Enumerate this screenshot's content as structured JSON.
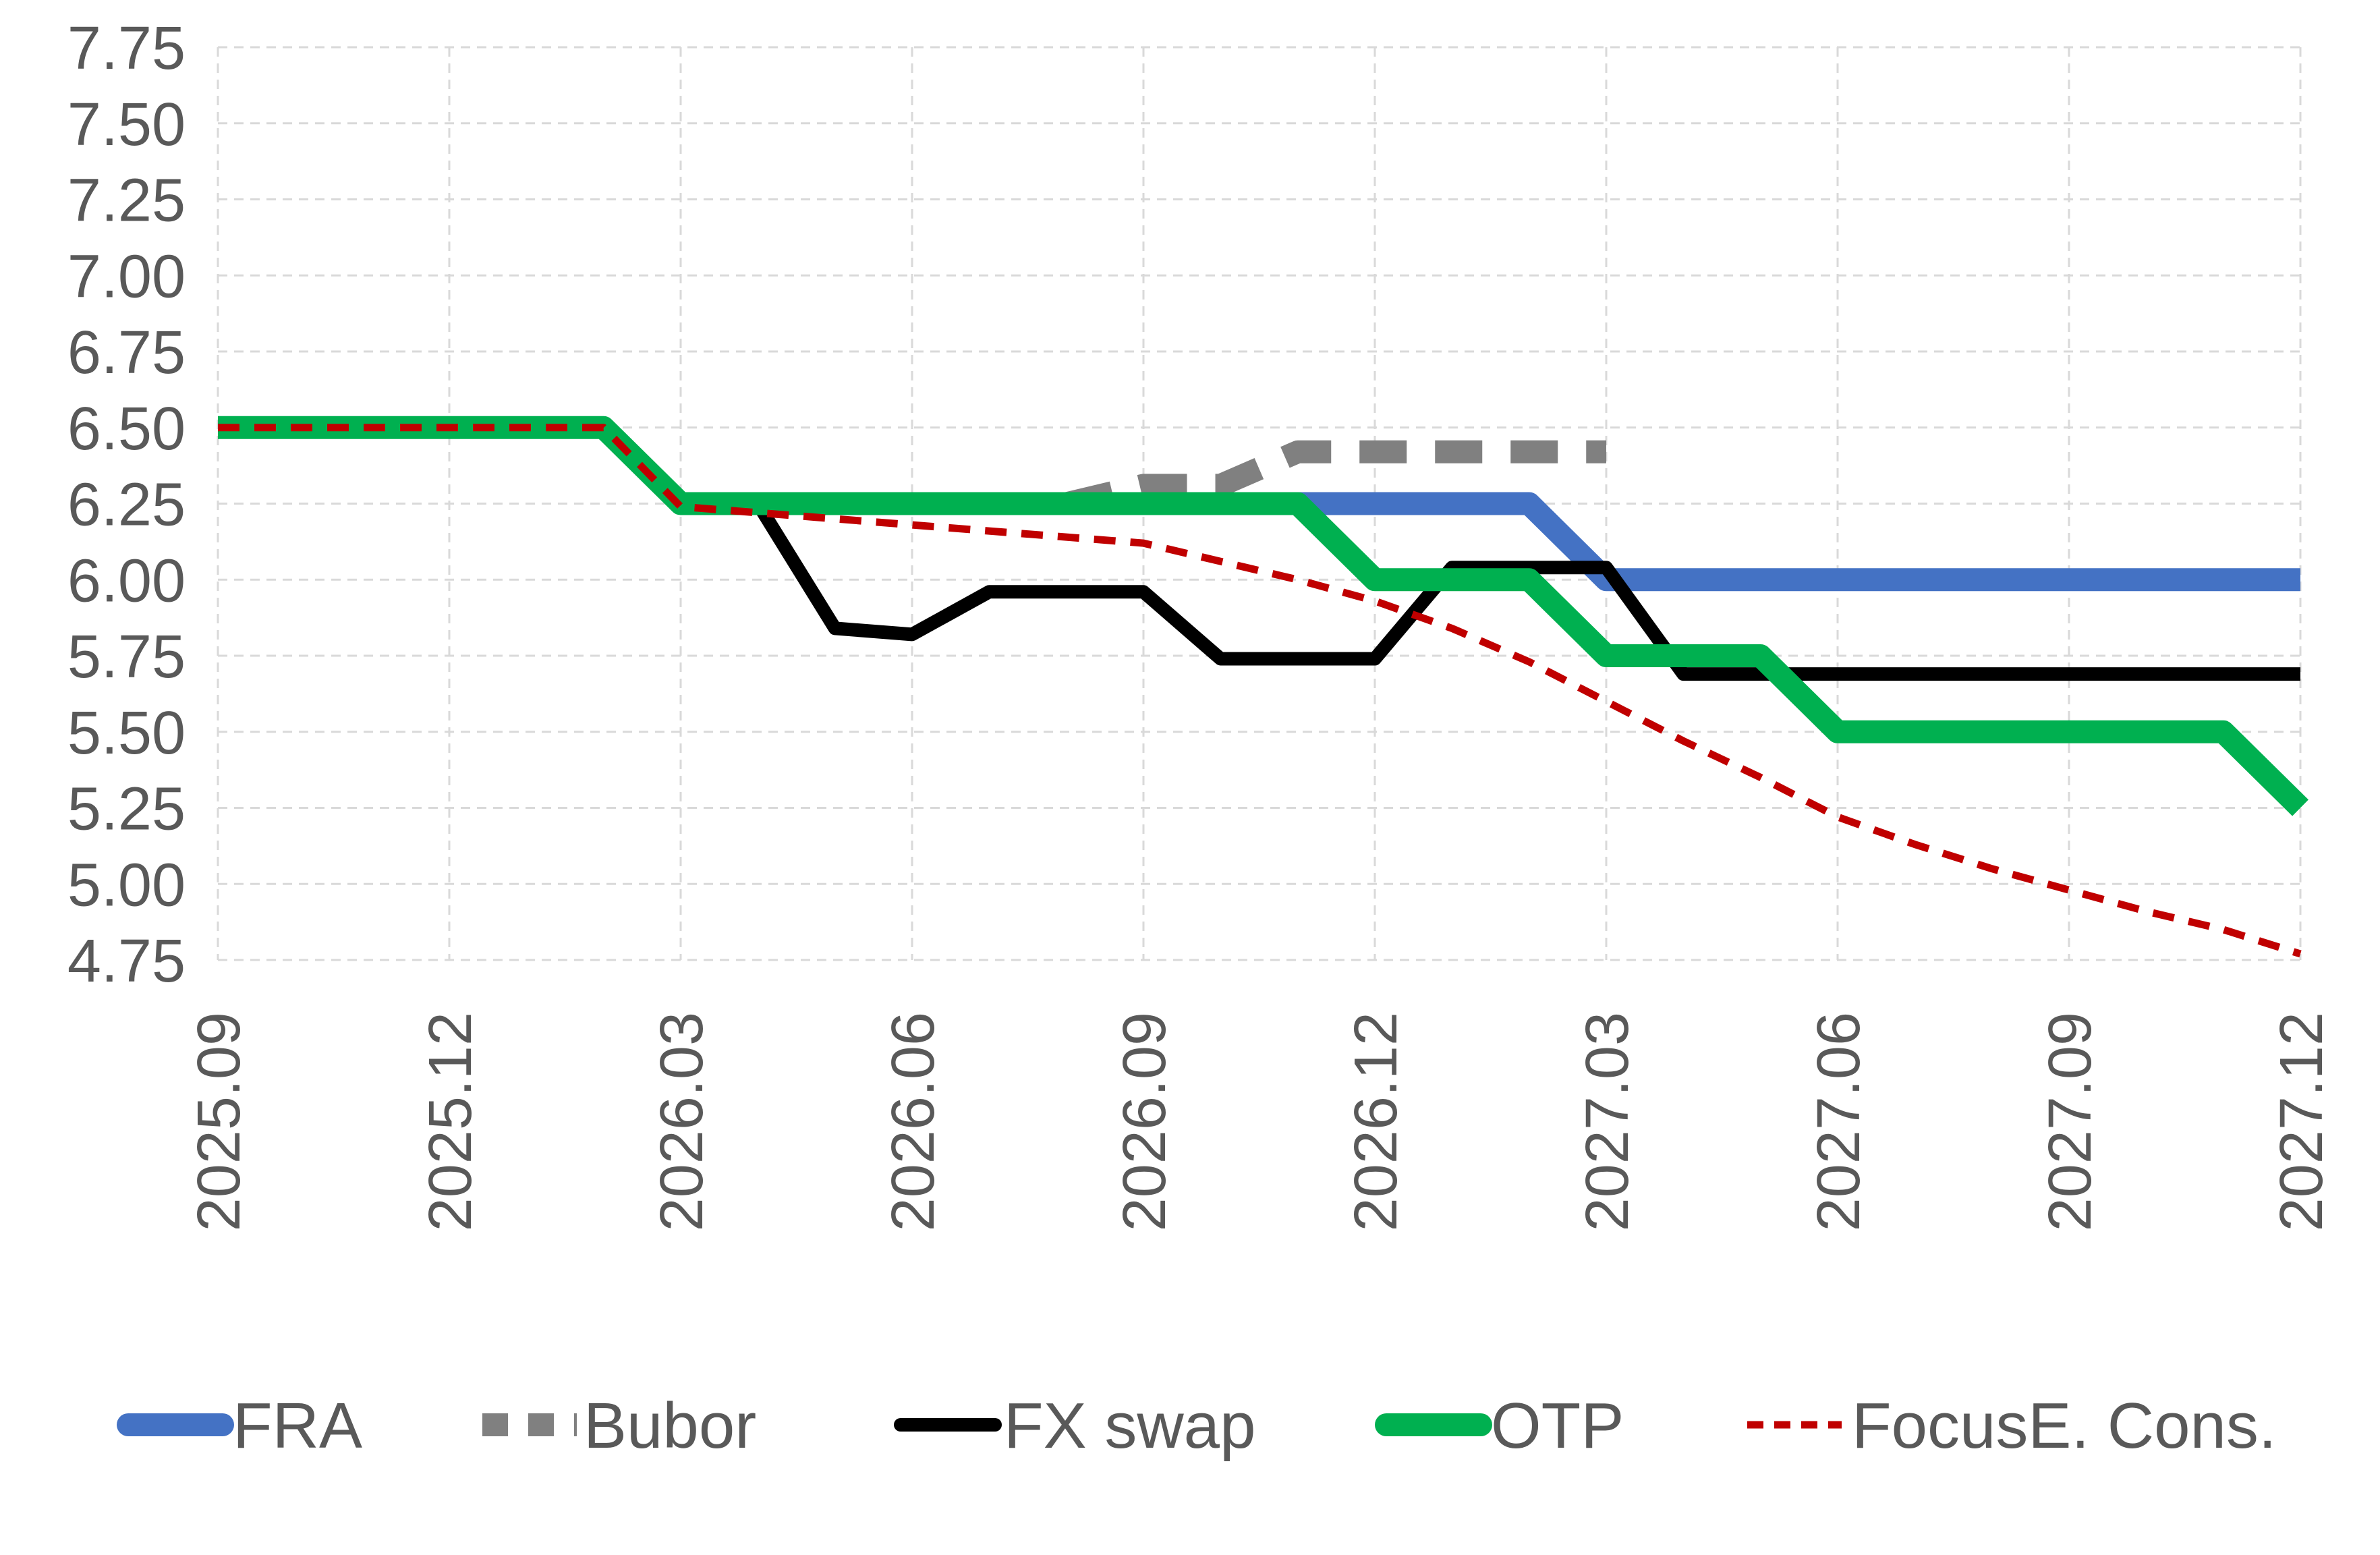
{
  "chart_data": {
    "type": "line",
    "title": "",
    "xlabel": "",
    "ylabel": "",
    "ylim": [
      4.75,
      7.75
    ],
    "y_ticks": [
      "7.75",
      "7.50",
      "7.25",
      "7.00",
      "6.75",
      "6.50",
      "6.25",
      "6.00",
      "5.75",
      "5.50",
      "5.25",
      "5.00",
      "4.75"
    ],
    "x_ticks": [
      "2025.09",
      "2025.12",
      "2026.03",
      "2026.06",
      "2026.09",
      "2026.12",
      "2027.03",
      "2027.06",
      "2027.09",
      "2027.12"
    ],
    "x_label_every": 3,
    "grid": true,
    "legend_position": "bottom",
    "x": [
      "2025.09",
      "2025.10",
      "2025.11",
      "2025.12",
      "2026.01",
      "2026.02",
      "2026.03",
      "2026.04",
      "2026.05",
      "2026.06",
      "2026.07",
      "2026.08",
      "2026.09",
      "2026.10",
      "2026.11",
      "2026.12",
      "2027.01",
      "2027.02",
      "2027.03",
      "2027.04",
      "2027.05",
      "2027.06",
      "2027.07",
      "2027.08",
      "2027.09",
      "2027.10",
      "2027.11",
      "2027.12"
    ],
    "series": [
      {
        "name": "FRA",
        "color": "#4472C4",
        "dash": "solid",
        "width": "thick",
        "values": [
          null,
          null,
          null,
          null,
          null,
          null,
          null,
          null,
          null,
          null,
          null,
          null,
          null,
          null,
          6.25,
          6.25,
          6.25,
          6.25,
          6.0,
          6.0,
          6.0,
          6.0,
          6.0,
          6.0,
          6.0,
          6.0,
          6.0,
          6.0
        ]
      },
      {
        "name": "Bubor",
        "color": "#808080",
        "dash": "long-dash",
        "width": "thick",
        "values": [
          null,
          null,
          null,
          null,
          null,
          null,
          null,
          null,
          null,
          null,
          null,
          6.25,
          6.31,
          6.31,
          6.42,
          6.42,
          6.42,
          6.42,
          6.42,
          null,
          null,
          null,
          null,
          null,
          null,
          null,
          null,
          null
        ]
      },
      {
        "name": "FX swap",
        "color": "#000000",
        "dash": "solid",
        "width": "medium",
        "values": [
          null,
          null,
          null,
          null,
          null,
          null,
          null,
          6.25,
          5.84,
          5.82,
          5.96,
          5.96,
          5.96,
          5.74,
          5.74,
          5.74,
          6.04,
          6.04,
          6.04,
          5.69,
          5.69,
          5.69,
          5.69,
          5.69,
          5.69,
          5.69,
          5.69,
          5.69
        ]
      },
      {
        "name": "OTP",
        "color": "#00B050",
        "dash": "solid",
        "width": "thick",
        "values": [
          6.5,
          6.5,
          6.5,
          6.5,
          6.5,
          6.5,
          6.25,
          6.25,
          6.25,
          6.25,
          6.25,
          6.25,
          6.25,
          6.25,
          6.25,
          6.0,
          6.0,
          6.0,
          5.75,
          5.75,
          5.75,
          5.5,
          5.5,
          5.5,
          5.5,
          5.5,
          5.5,
          5.25
        ]
      },
      {
        "name": "FocusE. Cons.",
        "color": "#C00000",
        "dash": "short-dash",
        "width": "thin",
        "values": [
          6.5,
          6.5,
          6.5,
          6.5,
          6.5,
          6.5,
          6.24,
          6.22,
          6.2,
          6.18,
          6.16,
          6.14,
          6.12,
          6.06,
          6.0,
          5.93,
          5.84,
          5.73,
          5.6,
          5.47,
          5.35,
          5.22,
          5.13,
          5.05,
          4.98,
          4.91,
          4.85,
          4.77
        ]
      }
    ]
  }
}
